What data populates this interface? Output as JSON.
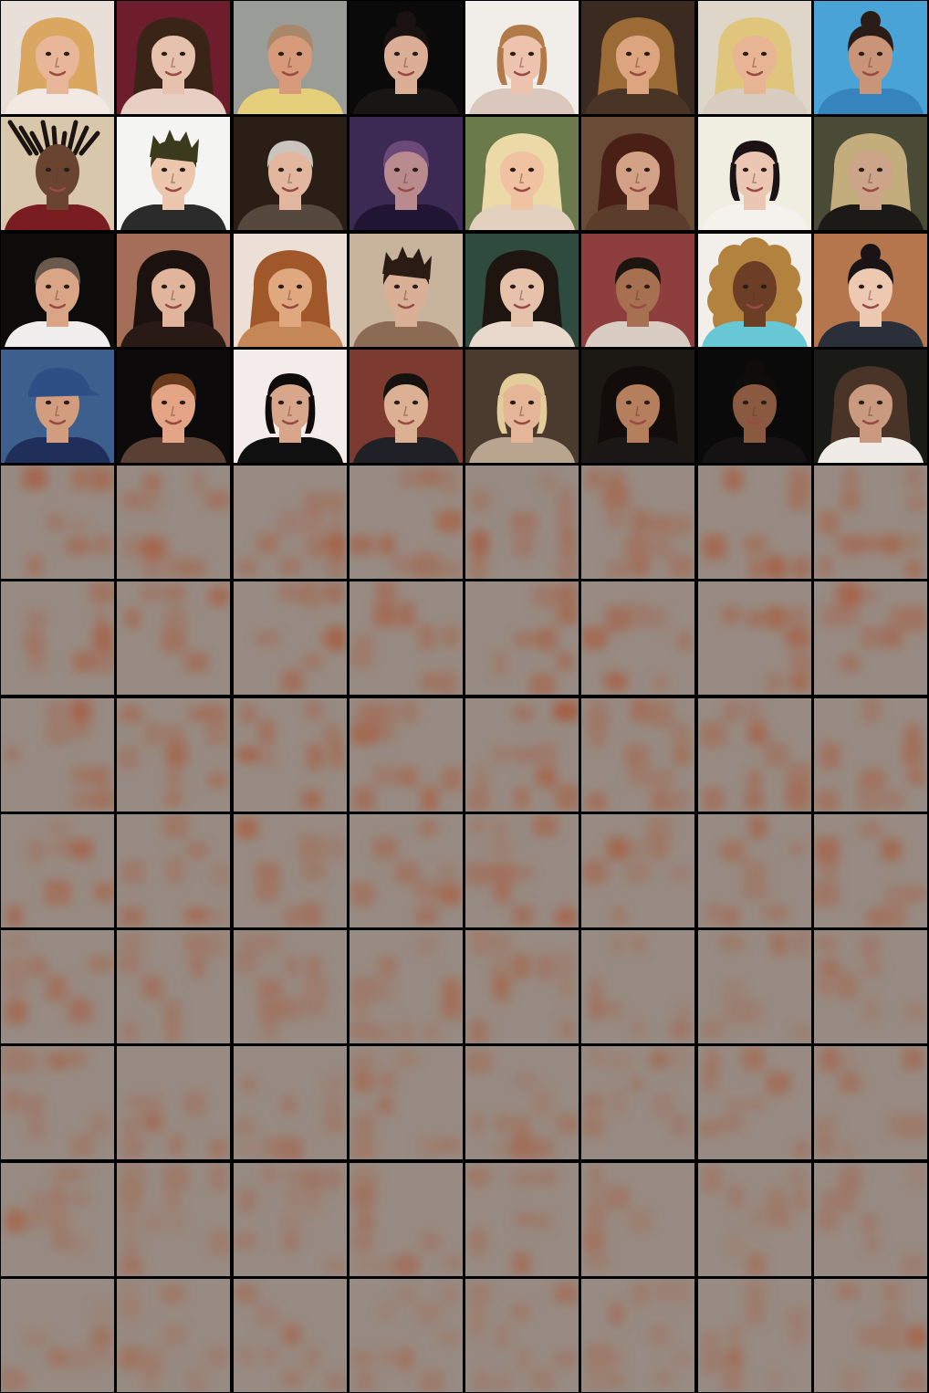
{
  "grid": {
    "rows": 12,
    "cols": 8,
    "separator_color": "#000000"
  },
  "face_rows": [
    [
      {
        "bg": "#e9dfd9",
        "skin": "#e8b79a",
        "hair": "#d9a760",
        "clothes": "#f2e9e3",
        "style": "long"
      },
      {
        "bg": "#6e1d2c",
        "skin": "#e6c1ad",
        "hair": "#3a2418",
        "clothes": "#e8cfc3",
        "style": "wavy"
      },
      {
        "bg": "#9a9c98",
        "skin": "#d79a7a",
        "hair": "#a8876a",
        "clothes": "#e6cf7a",
        "style": "short"
      },
      {
        "bg": "#0b0a0a",
        "skin": "#dcae95",
        "hair": "#1a1210",
        "clothes": "#181614",
        "style": "bun"
      },
      {
        "bg": "#f1ede8",
        "skin": "#eec3ad",
        "hair": "#b27a48",
        "clothes": "#d9c8bb",
        "style": "bob"
      },
      {
        "bg": "#3a2a1f",
        "skin": "#dca47f",
        "hair": "#9b6a35",
        "clothes": "#4a3426",
        "style": "wavy"
      },
      {
        "bg": "#ded6c8",
        "skin": "#e8b594",
        "hair": "#e0c57c",
        "clothes": "#d8cdbf",
        "style": "long"
      },
      {
        "bg": "#4aa3d6",
        "skin": "#c99478",
        "hair": "#2a1d18",
        "clothes": "#3584bd",
        "style": "bun"
      }
    ],
    [
      {
        "bg": "#d8c7aa",
        "skin": "#6a4430",
        "hair": "#1c1410",
        "clothes": "#7a1d22",
        "style": "locs"
      },
      {
        "bg": "#f4f4f2",
        "skin": "#edc7ad",
        "hair": "#3b3a1d",
        "clothes": "#2b2b2b",
        "style": "spiky"
      },
      {
        "bg": "#2b1e16",
        "skin": "#e3b69f",
        "hair": "#c9c4be",
        "clothes": "#57483e",
        "style": "short"
      },
      {
        "bg": "#3c2a55",
        "skin": "#b98b8f",
        "hair": "#6b4a7a",
        "clothes": "#201533",
        "style": "short"
      },
      {
        "bg": "#6b7a4a",
        "skin": "#f0c2a2",
        "hair": "#ecd9a8",
        "clothes": "#e2d1bf",
        "style": "long"
      },
      {
        "bg": "#6a4b36",
        "skin": "#d3a185",
        "hair": "#4a1f16",
        "clothes": "#5b3d2c",
        "style": "wavy"
      },
      {
        "bg": "#f0eee0",
        "skin": "#eac6b3",
        "hair": "#1a1214",
        "clothes": "#f4f2ec",
        "style": "bob"
      },
      {
        "bg": "#4a4b36",
        "skin": "#cba489",
        "hair": "#c4ad7d",
        "clothes": "#1c1a16",
        "style": "long"
      }
    ],
    [
      {
        "bg": "#0e0c0b",
        "skin": "#d9a586",
        "hair": "#6a5a4d",
        "clothes": "#f0eeec",
        "style": "short"
      },
      {
        "bg": "#a46e58",
        "skin": "#e1b59c",
        "hair": "#1b1210",
        "clothes": "#2a1a15",
        "style": "wavy"
      },
      {
        "bg": "#ecdfd5",
        "skin": "#e0a87e",
        "hair": "#a0582a",
        "clothes": "#c48755",
        "style": "long"
      },
      {
        "bg": "#c8b49c",
        "skin": "#d9b096",
        "hair": "#2a1c15",
        "clothes": "#8c6b55",
        "style": "spiky"
      },
      {
        "bg": "#2e4b3e",
        "skin": "#e7c2aa",
        "hair": "#1e1410",
        "clothes": "#e9d9cc",
        "style": "wavy"
      },
      {
        "bg": "#8e3e3d",
        "skin": "#a77051",
        "hair": "#1c1510",
        "clothes": "#d9cdc3",
        "style": "short"
      },
      {
        "bg": "#f2efea",
        "skin": "#6d3e26",
        "hair": "#b4823f",
        "clothes": "#68c7d4",
        "style": "curly"
      },
      {
        "bg": "#b5764e",
        "skin": "#ecc9b0",
        "hair": "#1a1416",
        "clothes": "#2a2f3a",
        "style": "bun"
      }
    ],
    [
      {
        "bg": "#3d5f8e",
        "skin": "#d29c7e",
        "hair": "#3a2a20",
        "clothes": "#1f2f5a",
        "style": "cap"
      },
      {
        "bg": "#0c0a0a",
        "skin": "#e3a585",
        "hair": "#6a3a1c",
        "clothes": "#5a4032",
        "style": "short"
      },
      {
        "bg": "#f4ecea",
        "skin": "#d8a68a",
        "hair": "#0f0b0b",
        "clothes": "#101010",
        "style": "bob"
      },
      {
        "bg": "#7c3b2e",
        "skin": "#dcb092",
        "hair": "#15110f",
        "clothes": "#1f2127",
        "style": "short"
      },
      {
        "bg": "#4a3b2e",
        "skin": "#e4b697",
        "hair": "#e2cc9a",
        "clothes": "#b9a58f",
        "style": "bob"
      },
      {
        "bg": "#1c1915",
        "skin": "#b57f5d",
        "hair": "#120d0b",
        "clothes": "#1a1716",
        "style": "long"
      },
      {
        "bg": "#0a0a0a",
        "skin": "#8a5a40",
        "hair": "#0f0c0a",
        "clothes": "#141212",
        "style": "bun"
      },
      {
        "bg": "#1a1a16",
        "skin": "#c99a7f",
        "hair": "#4a3428",
        "clothes": "#efece8",
        "style": "long"
      }
    ]
  ],
  "noise_rows": {
    "count": 8,
    "base_color": "#978b83",
    "blob_color": "#a85c3e",
    "strength": [
      0.62,
      0.64,
      0.6,
      0.58,
      0.45,
      0.44,
      0.4,
      0.36
    ]
  }
}
